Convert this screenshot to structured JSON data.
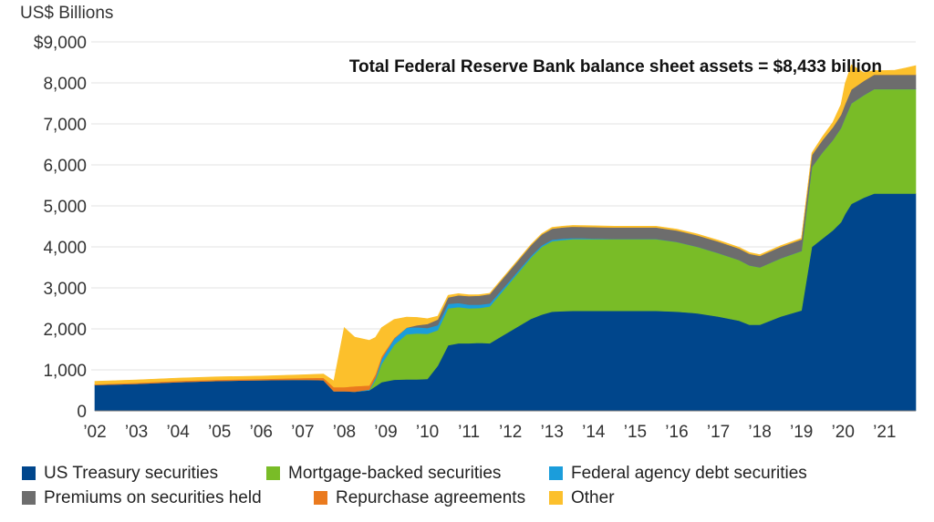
{
  "chart_data": {
    "type": "area",
    "stacked": true,
    "unit_label": "US$ Billions",
    "annotation": "Total Federal Reserve Bank balance sheet assets = $8,433 billion",
    "ylim": [
      0,
      9000
    ],
    "yticks": [
      {
        "value": 9000,
        "label": "$9,000"
      },
      {
        "value": 8000,
        "label": "8,000"
      },
      {
        "value": 7000,
        "label": "7,000"
      },
      {
        "value": 6000,
        "label": "6,000"
      },
      {
        "value": 5000,
        "label": "5,000"
      },
      {
        "value": 4000,
        "label": "4,000"
      },
      {
        "value": 3000,
        "label": "3,000"
      },
      {
        "value": 2000,
        "label": "2,000"
      },
      {
        "value": 1000,
        "label": "1,000"
      },
      {
        "value": 0,
        "label": "0"
      }
    ],
    "xlim": [
      2002.0,
      2021.75
    ],
    "xticks": [
      {
        "value": 2002,
        "label": "’02"
      },
      {
        "value": 2003,
        "label": "’03"
      },
      {
        "value": 2004,
        "label": "’04"
      },
      {
        "value": 2005,
        "label": "’05"
      },
      {
        "value": 2006,
        "label": "’06"
      },
      {
        "value": 2007,
        "label": "’07"
      },
      {
        "value": 2008,
        "label": "’08"
      },
      {
        "value": 2009,
        "label": "’09"
      },
      {
        "value": 2010,
        "label": "’10"
      },
      {
        "value": 2011,
        "label": "’11"
      },
      {
        "value": 2012,
        "label": "’12"
      },
      {
        "value": 2013,
        "label": "’13"
      },
      {
        "value": 2014,
        "label": "’14"
      },
      {
        "value": 2015,
        "label": "’15"
      },
      {
        "value": 2016,
        "label": "’16"
      },
      {
        "value": 2017,
        "label": "’17"
      },
      {
        "value": 2018,
        "label": "’18"
      },
      {
        "value": 2019,
        "label": "’19"
      },
      {
        "value": 2020,
        "label": "’20"
      },
      {
        "value": 2021,
        "label": "’21"
      }
    ],
    "grid": true,
    "legend_position": "bottom",
    "x": [
      2002.0,
      2003.0,
      2004.0,
      2005.0,
      2006.0,
      2007.0,
      2007.5,
      2007.75,
      2008.0,
      2008.25,
      2008.6,
      2008.75,
      2008.9,
      2009.2,
      2009.5,
      2009.75,
      2010.0,
      2010.25,
      2010.5,
      2010.75,
      2011.0,
      2011.25,
      2011.5,
      2011.75,
      2012.0,
      2012.25,
      2012.5,
      2012.75,
      2013.0,
      2013.25,
      2013.5,
      2013.75,
      2014.0,
      2014.25,
      2014.5,
      2014.75,
      2015.0,
      2015.5,
      2016.0,
      2016.5,
      2017.0,
      2017.5,
      2017.75,
      2018.0,
      2018.5,
      2019.0,
      2019.25,
      2019.5,
      2019.75,
      2019.95,
      2020.05,
      2020.2,
      2020.5,
      2020.75,
      2021.0,
      2021.25,
      2021.5,
      2021.75
    ],
    "series": [
      {
        "name": "US Treasury securities",
        "color": "#00468c",
        "values": [
          630,
          660,
          700,
          730,
          750,
          760,
          750,
          480,
          480,
          470,
          500,
          600,
          700,
          760,
          770,
          770,
          780,
          1100,
          1600,
          1650,
          1650,
          1660,
          1650,
          1800,
          1950,
          2100,
          2250,
          2350,
          2420,
          2430,
          2440,
          2440,
          2440,
          2440,
          2440,
          2440,
          2440,
          2440,
          2420,
          2380,
          2300,
          2200,
          2100,
          2100,
          2300,
          2450,
          4000,
          4200,
          4400,
          4600,
          4800,
          5050,
          5200,
          5300,
          5300,
          5300,
          5300,
          5300
        ]
      },
      {
        "name": "Mortgage-backed securities",
        "color": "#79bc27",
        "values": [
          0,
          0,
          0,
          0,
          0,
          0,
          0,
          0,
          0,
          0,
          0,
          150,
          450,
          850,
          1100,
          1120,
          1100,
          870,
          900,
          880,
          850,
          850,
          900,
          1050,
          1200,
          1350,
          1500,
          1650,
          1720,
          1740,
          1750,
          1750,
          1750,
          1750,
          1750,
          1750,
          1750,
          1750,
          1700,
          1620,
          1550,
          1480,
          1450,
          1400,
          1420,
          1450,
          1950,
          2100,
          2200,
          2300,
          2350,
          2450,
          2500,
          2550,
          2550,
          2550,
          2550,
          2550
        ]
      },
      {
        "name": "Federal agency debt securities",
        "color": "#1b9ddb",
        "values": [
          0,
          0,
          0,
          0,
          0,
          0,
          0,
          0,
          0,
          0,
          20,
          60,
          120,
          150,
          160,
          150,
          140,
          120,
          110,
          100,
          90,
          80,
          70,
          60,
          50,
          45,
          40,
          38,
          35,
          30,
          25,
          20,
          15,
          10,
          5,
          5,
          5,
          5,
          3,
          3,
          2,
          2,
          2,
          2,
          2,
          2,
          2,
          2,
          2,
          2,
          2,
          2,
          2,
          2,
          2,
          2,
          2,
          2
        ]
      },
      {
        "name": "Premiums on securities held",
        "color": "#6d6d6d",
        "values": [
          0,
          0,
          0,
          0,
          0,
          0,
          0,
          0,
          0,
          0,
          0,
          0,
          0,
          0,
          0,
          50,
          100,
          140,
          160,
          190,
          210,
          220,
          230,
          240,
          250,
          255,
          260,
          265,
          270,
          275,
          280,
          280,
          280,
          280,
          280,
          280,
          280,
          280,
          280,
          280,
          280,
          280,
          280,
          280,
          280,
          280,
          290,
          300,
          310,
          320,
          330,
          340,
          350,
          350,
          350,
          350,
          350,
          350
        ]
      },
      {
        "name": "Repurchase agreements",
        "color": "#ea7a1e",
        "values": [
          20,
          25,
          30,
          30,
          30,
          40,
          60,
          100,
          100,
          130,
          100,
          80,
          60,
          20,
          0,
          0,
          0,
          0,
          0,
          0,
          0,
          0,
          0,
          0,
          0,
          0,
          0,
          0,
          0,
          0,
          0,
          0,
          0,
          0,
          0,
          0,
          0,
          0,
          0,
          0,
          0,
          0,
          0,
          0,
          0,
          0,
          0,
          0,
          0,
          0,
          0,
          0,
          0,
          0,
          0,
          0,
          0,
          0
        ]
      },
      {
        "name": "Other",
        "color": "#fcc02c",
        "values": [
          70,
          70,
          70,
          70,
          70,
          80,
          90,
          150,
          1450,
          1200,
          1100,
          900,
          700,
          450,
          260,
          190,
          130,
          80,
          50,
          40,
          30,
          25,
          20,
          20,
          20,
          20,
          20,
          20,
          30,
          30,
          30,
          30,
          30,
          30,
          30,
          30,
          30,
          30,
          30,
          30,
          30,
          30,
          30,
          30,
          30,
          30,
          50,
          80,
          120,
          250,
          500,
          600,
          200,
          100,
          100,
          110,
          160,
          220
        ]
      }
    ]
  }
}
